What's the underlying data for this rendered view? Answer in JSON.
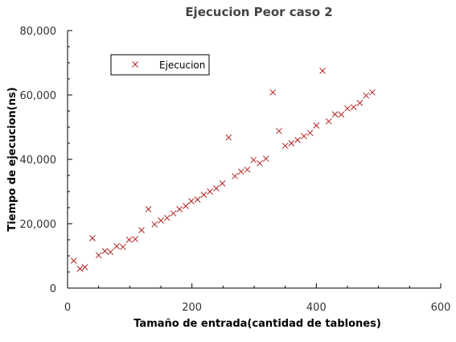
{
  "chart_data": {
    "type": "scatter",
    "title": "Ejecucion Peor caso 2",
    "xlabel": "Tamaño de entrada(cantidad de tablones)",
    "ylabel": "Tiempo de ejecucion(ns)",
    "xlim": [
      0,
      600
    ],
    "ylim": [
      0,
      80000
    ],
    "x_ticks": [
      0,
      200,
      400,
      600
    ],
    "x_tick_labels": [
      "0",
      "200",
      "400",
      "600"
    ],
    "y_ticks": [
      0,
      20000,
      40000,
      60000,
      80000
    ],
    "y_tick_labels": [
      "0",
      "20,000",
      "40,000",
      "60,000",
      "80,000"
    ],
    "grid": false,
    "legend_position": "top-left",
    "marker": "x",
    "marker_color": "#b22222",
    "series": [
      {
        "name": "Ejecucion",
        "points": [
          [
            10,
            8500
          ],
          [
            20,
            6000
          ],
          [
            28,
            6500
          ],
          [
            40,
            15500
          ],
          [
            50,
            10200
          ],
          [
            60,
            11500
          ],
          [
            69,
            11200
          ],
          [
            79,
            13000
          ],
          [
            89,
            12800
          ],
          [
            99,
            15000
          ],
          [
            109,
            15200
          ],
          [
            119,
            18000
          ],
          [
            130,
            24500
          ],
          [
            140,
            19800
          ],
          [
            150,
            21000
          ],
          [
            160,
            21800
          ],
          [
            170,
            23200
          ],
          [
            180,
            24500
          ],
          [
            190,
            25500
          ],
          [
            199,
            27000
          ],
          [
            209,
            27500
          ],
          [
            219,
            29000
          ],
          [
            229,
            30000
          ],
          [
            239,
            31000
          ],
          [
            249,
            32500
          ],
          [
            259,
            46800
          ],
          [
            269,
            34800
          ],
          [
            279,
            36200
          ],
          [
            289,
            36800
          ],
          [
            299,
            39800
          ],
          [
            309,
            38800
          ],
          [
            319,
            40200
          ],
          [
            330,
            60800
          ],
          [
            340,
            48800
          ],
          [
            350,
            44200
          ],
          [
            360,
            45000
          ],
          [
            370,
            46000
          ],
          [
            380,
            47200
          ],
          [
            390,
            48200
          ],
          [
            400,
            50500
          ],
          [
            410,
            67500
          ],
          [
            420,
            51800
          ],
          [
            430,
            54000
          ],
          [
            440,
            53900
          ],
          [
            450,
            55800
          ],
          [
            460,
            56200
          ],
          [
            470,
            57500
          ],
          [
            480,
            59800
          ],
          [
            490,
            60800
          ]
        ]
      }
    ]
  }
}
